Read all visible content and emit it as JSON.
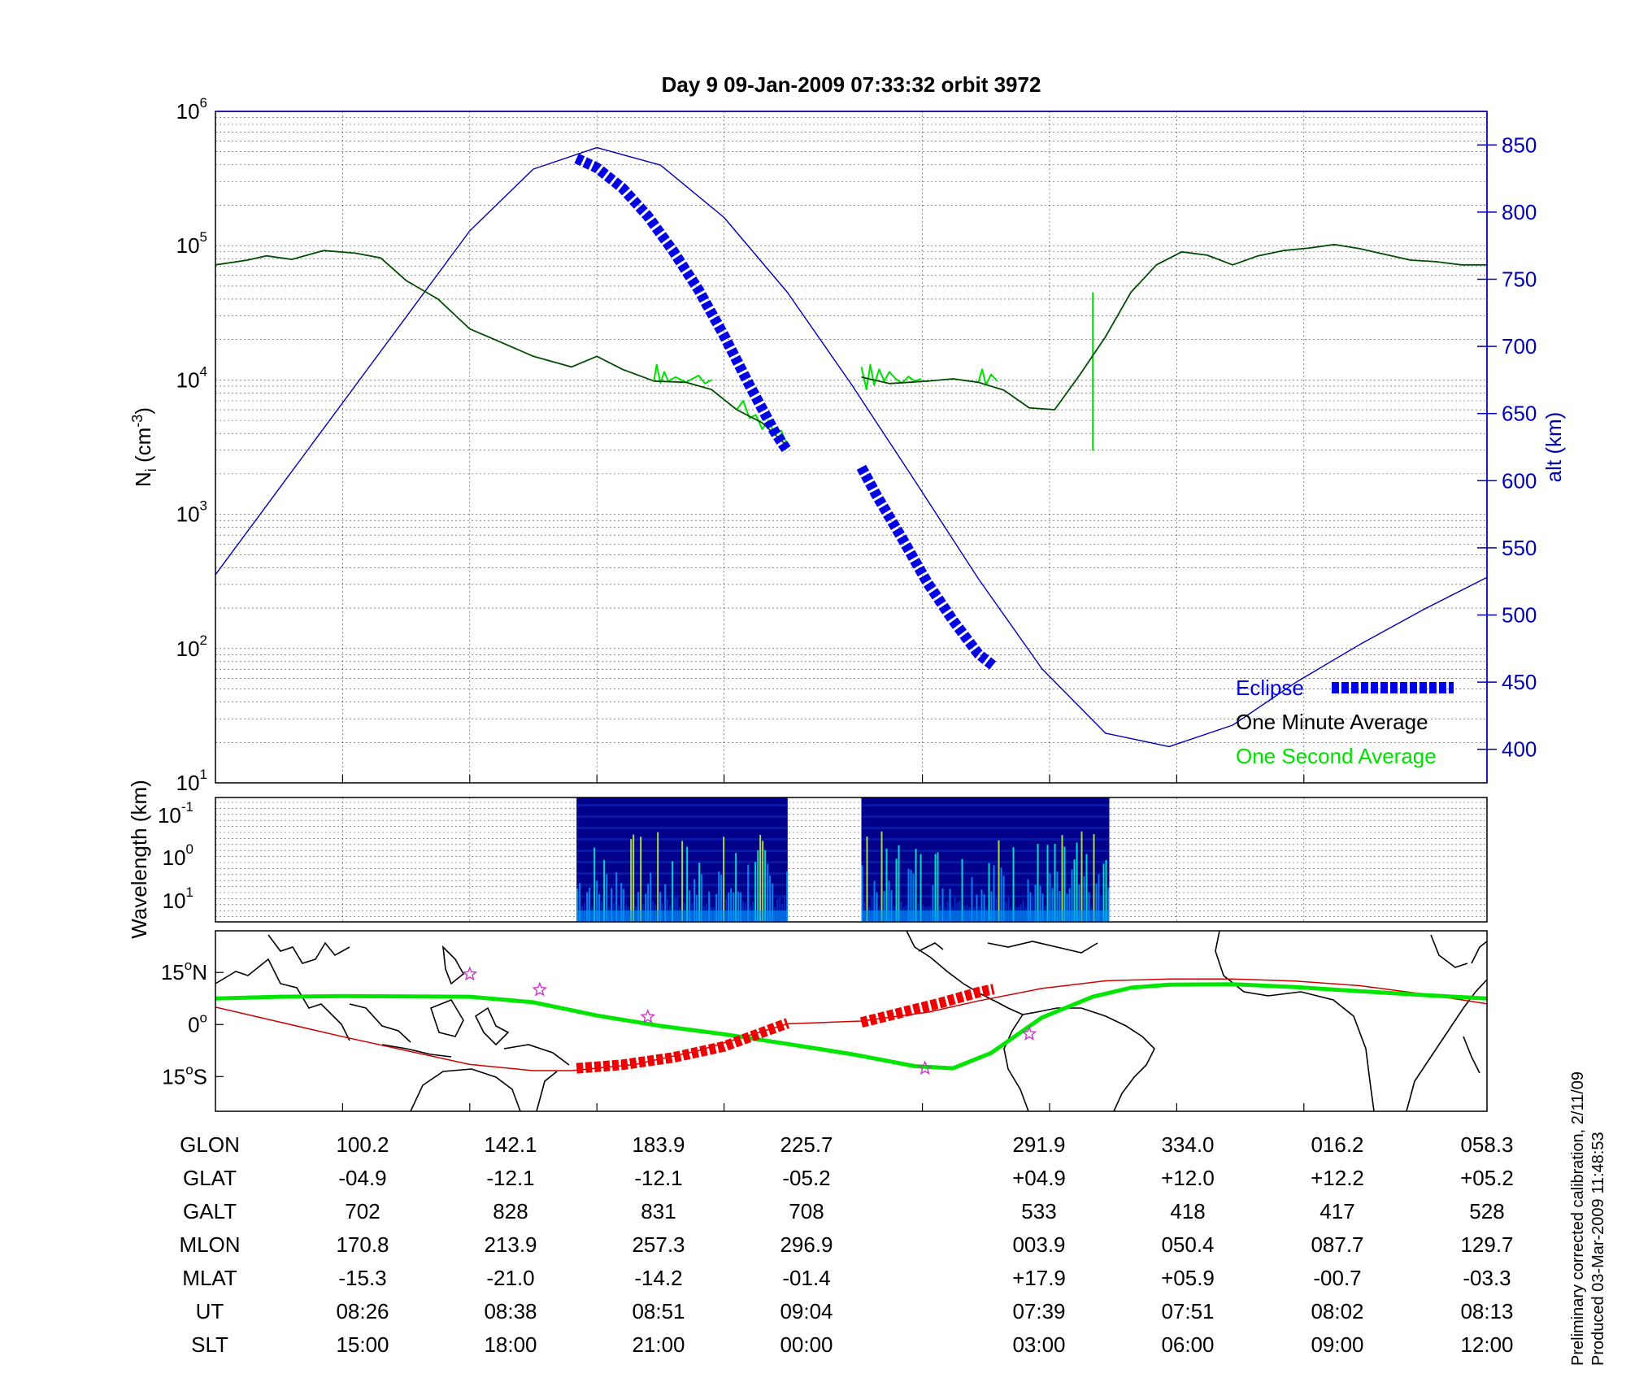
{
  "title": "Day 9  09-Jan-2009 07:33:32   orbit 3972",
  "colors": {
    "altitude": "#0000b4",
    "density_minute": "#004d00",
    "density_second": "#00e000",
    "eclipse": "#0000e6",
    "track_green": "#00e600",
    "track_red": "#cc0000",
    "eclipse_map": "#ee0000",
    "stars": "#cc33cc",
    "grid": "#000000"
  },
  "chart_data": [
    {
      "type": "line",
      "panel": "density",
      "ylabel_main": "N",
      "ylabel_sub": "i",
      "ylabel_unit_prefix": " (cm",
      "ylabel_unit_exp": "-3",
      "ylabel_unit_suffix": ")",
      "yscale": "log",
      "ylim": [
        10,
        1000000
      ],
      "y_ticks": [
        {
          "base": "10",
          "exp": "1"
        },
        {
          "base": "10",
          "exp": "2"
        },
        {
          "base": "10",
          "exp": "3"
        },
        {
          "base": "10",
          "exp": "4"
        },
        {
          "base": "10",
          "exp": "5"
        },
        {
          "base": "10",
          "exp": "6"
        }
      ],
      "y2label": "alt (km)",
      "y2lim": [
        375,
        875
      ],
      "y2_ticks": [
        "400",
        "450",
        "500",
        "550",
        "600",
        "650",
        "700",
        "750",
        "800",
        "850"
      ],
      "xlim": [
        0,
        1
      ],
      "x_ticks": [
        0.1,
        0.2,
        0.3,
        0.4,
        0.556,
        0.656,
        0.756,
        0.856
      ],
      "grid": true,
      "legend_position": "bottom-right",
      "legend": {
        "eclipse": "Eclipse",
        "minute": "One Minute Average",
        "second": "One Second Average"
      },
      "series": [
        {
          "name": "alt (km)",
          "axis": "right",
          "x": [
            0,
            0.05,
            0.1,
            0.15,
            0.2,
            0.25,
            0.3,
            0.35,
            0.4,
            0.45,
            0.5,
            0.55,
            0.6,
            0.65,
            0.7,
            0.75,
            0.8,
            0.85,
            0.9,
            0.95,
            1.0
          ],
          "y": [
            530,
            594,
            658,
            722,
            786,
            832,
            848,
            835,
            796,
            740,
            672,
            600,
            527,
            460,
            412,
            402,
            418,
            450,
            478,
            504,
            528
          ]
        },
        {
          "name": "One Minute Average",
          "axis": "left",
          "segments": [
            {
              "x": [
                0,
                0.025,
                0.04,
                0.06,
                0.085,
                0.11,
                0.13,
                0.15,
                0.175,
                0.2,
                0.225,
                0.25,
                0.28,
                0.3,
                0.32,
                0.345,
                0.37,
                0.39,
                0.41,
                0.43,
                0.45
              ],
              "y": [
                72000,
                78000,
                84000,
                79000,
                92000,
                88000,
                81000,
                55000,
                40000,
                24000,
                19000,
                15000,
                12500,
                15000,
                12000,
                9800,
                9600,
                8500,
                6000,
                4800,
                3200
              ]
            },
            {
              "x": [
                0.508,
                0.53,
                0.56,
                0.58,
                0.6,
                0.62,
                0.64,
                0.66,
                0.68,
                0.7,
                0.72,
                0.74,
                0.76,
                0.78,
                0.8,
                0.82,
                0.84,
                0.86,
                0.88,
                0.9,
                0.92,
                0.94,
                0.96,
                0.98,
                1.0
              ],
              "y": [
                10500,
                9400,
                9800,
                10200,
                9600,
                8400,
                6200,
                6000,
                11000,
                21000,
                45000,
                72000,
                90000,
                85000,
                72000,
                84000,
                92000,
                96000,
                102000,
                95000,
                86000,
                78000,
                76000,
                72000,
                72000
              ]
            }
          ]
        },
        {
          "name": "One Second Average",
          "axis": "left",
          "segments": [
            {
              "x": [
                0.345,
                0.347,
                0.35,
                0.353,
                0.356,
                0.362,
                0.37,
                0.38,
                0.385,
                0.39
              ],
              "y": [
                10000,
                13000,
                9500,
                11500,
                9800,
                10500,
                9600,
                10800,
                9400,
                10000
              ]
            },
            {
              "x": [
                0.41,
                0.415,
                0.42,
                0.425,
                0.43,
                0.435,
                0.44,
                0.445,
                0.45
              ],
              "y": [
                6000,
                7000,
                5200,
                5500,
                4300,
                5000,
                3900,
                4200,
                3200
              ]
            },
            {
              "x": [
                0.508,
                0.512,
                0.515,
                0.518,
                0.522,
                0.526,
                0.53,
                0.535,
                0.54,
                0.545,
                0.55,
                0.555
              ],
              "y": [
                12500,
                8500,
                13000,
                9200,
                12000,
                9800,
                11500,
                10200,
                9500,
                10600,
                9800,
                10200
              ]
            },
            {
              "x": [
                0.6,
                0.603,
                0.606,
                0.61,
                0.615
              ],
              "y": [
                9600,
                12000,
                9200,
                11000,
                9800
              ]
            },
            {
              "x": [
                0.69,
                0.69,
                0.69
              ],
              "y": [
                45000,
                3000,
                45000
              ]
            }
          ]
        },
        {
          "name": "Eclipse",
          "axis": "right",
          "segments": [
            {
              "x": [
                0.284,
                0.3,
                0.32,
                0.34,
                0.36,
                0.38,
                0.4,
                0.42,
                0.44,
                0.45
              ],
              "y": [
                840,
                833,
                818,
                797,
                771,
                742,
                708,
                671,
                636,
                622
              ]
            },
            {
              "x": [
                0.508,
                0.52,
                0.54,
                0.56,
                0.58,
                0.6,
                0.612
              ],
              "y": [
                610,
                589,
                557,
                524,
                496,
                471,
                462
              ]
            }
          ]
        }
      ]
    },
    {
      "type": "heatmap",
      "panel": "spectrogram",
      "ylabel": "Wavelength (km)",
      "yscale": "log",
      "y_ticks": [
        {
          "base": "10",
          "exp": "-1"
        },
        {
          "base": "10",
          "exp": "0"
        },
        {
          "base": "10",
          "exp": "1"
        }
      ],
      "xlim": [
        0,
        1
      ],
      "segments": [
        [
          0.284,
          0.45
        ],
        [
          0.508,
          0.703
        ]
      ],
      "colormap": [
        "#00008b",
        "#0033cc",
        "#0099ff",
        "#00ffcc",
        "#ccff33",
        "#ff6600"
      ]
    },
    {
      "type": "line",
      "panel": "map",
      "ylabel_ticks": [
        "15",
        "0",
        "15"
      ],
      "ylabel_dirs": [
        "N",
        "",
        "S"
      ],
      "ylim": [
        -25,
        27
      ],
      "xlim": [
        0,
        1
      ],
      "series": [
        {
          "name": "green_track",
          "x": [
            0,
            0.05,
            0.1,
            0.2,
            0.25,
            0.3,
            0.35,
            0.4,
            0.45,
            0.5,
            0.55,
            0.58,
            0.61,
            0.65,
            0.69,
            0.72,
            0.75,
            0.8,
            0.85,
            0.9,
            0.95,
            1.0
          ],
          "y": [
            7.5,
            8.0,
            8.2,
            8.0,
            6.4,
            2.6,
            -0.4,
            -2.8,
            -5.6,
            -8.5,
            -12.0,
            -12.6,
            -8.2,
            2.0,
            8.0,
            10.6,
            11.5,
            11.6,
            10.8,
            9.6,
            8.5,
            7.5
          ]
        },
        {
          "name": "red_track",
          "x": [
            0,
            0.1,
            0.2,
            0.25,
            0.28,
            0.33,
            0.38,
            0.45,
            0.508,
            0.56,
            0.6,
            0.65,
            0.7,
            0.75,
            0.8,
            0.85,
            0.9,
            0.95,
            1.0
          ],
          "y": [
            5,
            -3.5,
            -11.5,
            -13.3,
            -13.3,
            -11.5,
            -7.5,
            0.2,
            1,
            3.5,
            6.8,
            10.4,
            12.6,
            13.1,
            13.1,
            12.5,
            11.2,
            8.8,
            6.0
          ]
        },
        {
          "name": "eclipse_track",
          "segments": [
            {
              "x": [
                0.284,
                0.32,
                0.36,
                0.4,
                0.45
              ],
              "y": [
                -12.6,
                -11.6,
                -9.5,
                -6.3,
                0.4
              ]
            },
            {
              "x": [
                0.508,
                0.54,
                0.57,
                0.6,
                0.612
              ],
              "y": [
                0.6,
                3.5,
                6.2,
                9.3,
                10.2
              ]
            }
          ]
        }
      ],
      "stars": {
        "x": [
          0.2,
          0.255,
          0.34,
          0.558,
          0.64
        ],
        "y": [
          14.5,
          10,
          2.2,
          -12.6,
          -2.7
        ]
      }
    }
  ],
  "coord_rows": [
    {
      "label": "GLON",
      "values": [
        "100.2",
        "142.1",
        "183.9",
        "225.7",
        "291.9",
        "334.0",
        "016.2",
        "058.3"
      ]
    },
    {
      "label": "GLAT",
      "values": [
        "-04.9",
        "-12.1",
        "-12.1",
        "-05.2",
        "+04.9",
        "+12.0",
        "+12.2",
        "+05.2"
      ]
    },
    {
      "label": "GALT",
      "values": [
        "702",
        "828",
        "831",
        "708",
        "533",
        "418",
        "417",
        "528"
      ]
    },
    {
      "label": "MLON",
      "values": [
        "170.8",
        "213.9",
        "257.3",
        "296.9",
        "003.9",
        "050.4",
        "087.7",
        "129.7"
      ]
    },
    {
      "label": "MLAT",
      "values": [
        "-15.3",
        "-21.0",
        "-14.2",
        "-01.4",
        "+17.9",
        "+05.9",
        "-00.7",
        "-03.3"
      ]
    },
    {
      "label": "UT",
      "values": [
        "08:26",
        "08:38",
        "08:51",
        "09:04",
        "07:39",
        "07:51",
        "08:02",
        "08:13"
      ]
    },
    {
      "label": "SLT",
      "values": [
        "15:00",
        "18:00",
        "21:00",
        "00:00",
        "03:00",
        "06:00",
        "09:00",
        "12:00"
      ]
    }
  ],
  "footnote": {
    "line1": "Preliminary corrected calibration, 2/11/09",
    "line2": "Produced 03-Mar-2009 11:48:53"
  }
}
